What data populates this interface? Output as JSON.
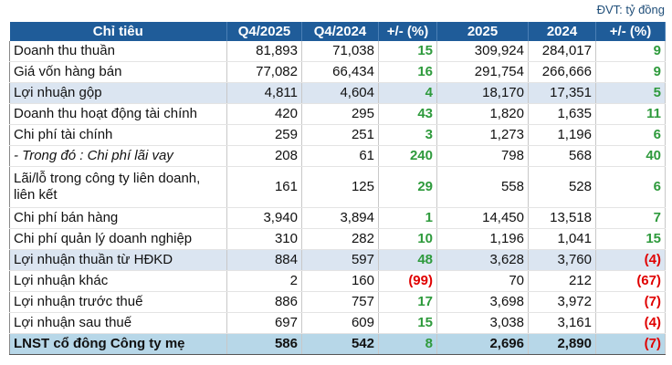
{
  "unit": "ĐVT: tỷ đồng",
  "table": {
    "header": [
      "Chỉ tiêu",
      "Q4/2025",
      "Q4/2024",
      "+/- (%)",
      "2025",
      "2024",
      "+/- (%)"
    ],
    "rows": [
      [
        "Doanh thu thuần",
        "81,893",
        "71,038",
        "15",
        "309,924",
        "284,017",
        "9"
      ],
      [
        "Giá vốn hàng bán",
        "77,082",
        "66,434",
        "16",
        "291,754",
        "266,666",
        "9"
      ],
      [
        "Lợi nhuận gộp",
        "4,811",
        "4,604",
        "4",
        "18,170",
        "17,351",
        "5"
      ],
      [
        "Doanh thu hoạt động tài chính",
        "420",
        "295",
        "43",
        "1,820",
        "1,635",
        "11"
      ],
      [
        "Chi phí tài chính",
        "259",
        "251",
        "3",
        "1,273",
        "1,196",
        "6"
      ],
      [
        "- Trong đó : Chi phí lãi vay",
        "208",
        "61",
        "240",
        "798",
        "568",
        "40"
      ],
      [
        "Lãi/lỗ trong công ty liên doanh, liên kết",
        "161",
        "125",
        "29",
        "558",
        "528",
        "6"
      ],
      [
        "Chi phí bán hàng",
        "3,940",
        "3,894",
        "1",
        "14,450",
        "13,518",
        "7"
      ],
      [
        "Chi phí quản lý doanh nghiệp",
        "310",
        "282",
        "10",
        "1,196",
        "1,041",
        "15"
      ],
      [
        "Lợi nhuận thuần từ HĐKD",
        "884",
        "597",
        "48",
        "3,628",
        "3,760",
        "(4)"
      ],
      [
        "Lợi nhuận khác",
        "2",
        "160",
        "(99)",
        "70",
        "212",
        "(67)"
      ],
      [
        "Lợi nhuận trước thuế",
        "886",
        "757",
        "17",
        "3,698",
        "3,972",
        "(7)"
      ],
      [
        "Lợi nhuận sau thuế",
        "697",
        "609",
        "15",
        "3,038",
        "3,161",
        "(4)"
      ],
      [
        "LNST cổ đông Công ty mẹ",
        "586",
        "542",
        "8",
        "2,696",
        "2,890",
        "(7)"
      ]
    ]
  }
}
